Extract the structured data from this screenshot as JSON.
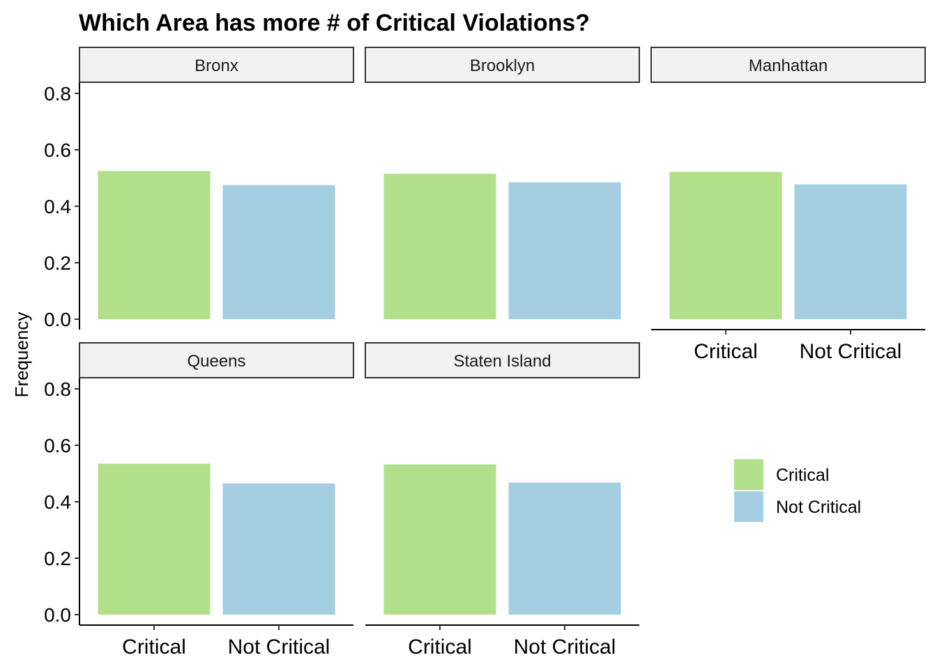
{
  "chart_data": {
    "type": "bar",
    "title": "Which Area has more # of Critical Violations?",
    "xlabel": "",
    "ylabel": "Frequency",
    "ylim": [
      0,
      0.8
    ],
    "yticks": [
      "0.0",
      "0.2",
      "0.4",
      "0.6",
      "0.8"
    ],
    "categories": [
      "Critical",
      "Not Critical"
    ],
    "colors": {
      "Critical": "#b2df8a",
      "Not Critical": "#a6cee3"
    },
    "grid": false,
    "legend": {
      "placement": "right",
      "entries": [
        {
          "label": "Critical",
          "color": "#b2df8a"
        },
        {
          "label": "Not Critical",
          "color": "#a6cee3"
        }
      ]
    },
    "facets": [
      {
        "name": "Bronx",
        "values": [
          0.525,
          0.475
        ]
      },
      {
        "name": "Brooklyn",
        "values": [
          0.515,
          0.485
        ]
      },
      {
        "name": "Manhattan",
        "values": [
          0.522,
          0.478
        ]
      },
      {
        "name": "Queens",
        "values": [
          0.535,
          0.465
        ]
      },
      {
        "name": "Staten Island",
        "values": [
          0.532,
          0.468
        ]
      }
    ]
  }
}
